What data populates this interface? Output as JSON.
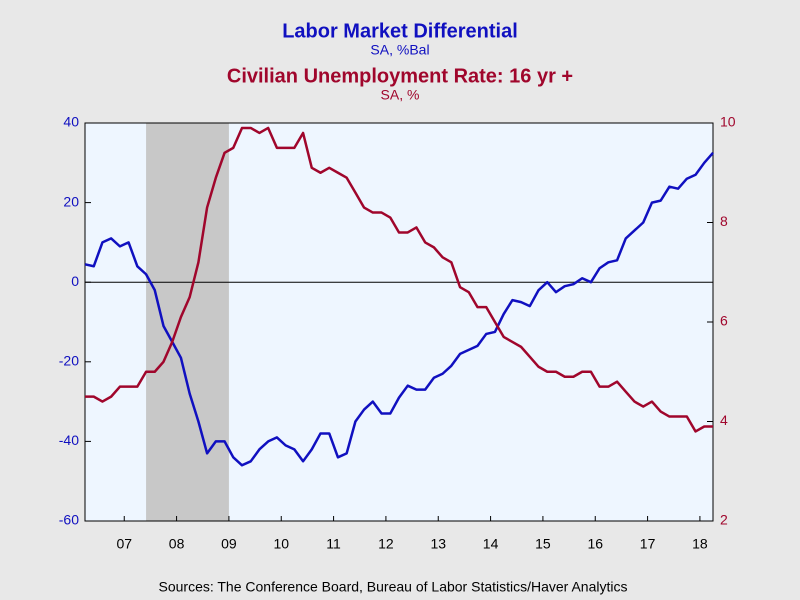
{
  "chart_data": {
    "type": "line",
    "series": [
      {
        "name": "Labor Market Differential",
        "units": "SA, %Bal",
        "color": "#1010c0",
        "axis": "y",
        "values": [
          4.5,
          4,
          10,
          11,
          9,
          10,
          4,
          2,
          -2,
          -11,
          -15,
          -19,
          -28,
          -35,
          -43,
          -40,
          -40,
          -44,
          -46,
          -45,
          -42,
          -40,
          -39,
          -41,
          -42,
          -45,
          -42,
          -38,
          -38,
          -44,
          -43,
          -35,
          -32,
          -30,
          -33,
          -33,
          -29,
          -26,
          -27,
          -27,
          -24,
          -23,
          -21,
          -18,
          -17,
          -16,
          -13,
          -12.5,
          -8,
          -4.5,
          -5,
          -6,
          -2,
          0,
          -2.5,
          -1,
          -0.5,
          1,
          0,
          3.5,
          5,
          5.5,
          11,
          13,
          15,
          20,
          20.5,
          24,
          23.5,
          26,
          27,
          30,
          32.5
        ]
      },
      {
        "name": "Civilian Unemployment Rate: 16 yr +",
        "units": "SA, %",
        "color": "#a0062c",
        "axis": "y2",
        "values": [
          4.5,
          4.5,
          4.4,
          4.5,
          4.7,
          4.7,
          4.7,
          5.0,
          5.0,
          5.2,
          5.6,
          6.1,
          6.5,
          7.2,
          8.3,
          8.9,
          9.4,
          9.5,
          9.9,
          9.9,
          9.8,
          9.9,
          9.5,
          9.5,
          9.5,
          9.8,
          9.1,
          9.0,
          9.1,
          9.0,
          8.9,
          8.6,
          8.3,
          8.2,
          8.2,
          8.1,
          7.8,
          7.8,
          7.9,
          7.6,
          7.5,
          7.3,
          7.2,
          6.7,
          6.6,
          6.3,
          6.3,
          6.0,
          5.7,
          5.6,
          5.5,
          5.3,
          5.1,
          5.0,
          5.0,
          4.9,
          4.9,
          5.0,
          5.0,
          4.7,
          4.7,
          4.8,
          4.6,
          4.4,
          4.3,
          4.4,
          4.2,
          4.1,
          4.1,
          4.1,
          3.8,
          3.9,
          3.9
        ]
      }
    ],
    "x": [
      2006.75,
      2006.917,
      2007.083,
      2007.25,
      2007.417,
      2007.583,
      2007.75,
      2007.917,
      2008.083,
      2008.25,
      2008.417,
      2008.583,
      2008.75,
      2008.917,
      2009.083,
      2009.25,
      2009.417,
      2009.583,
      2009.75,
      2009.917,
      2010.083,
      2010.25,
      2010.417,
      2010.583,
      2010.75,
      2010.917,
      2011.083,
      2011.25,
      2011.417,
      2011.583,
      2011.75,
      2011.917,
      2012.083,
      2012.25,
      2012.417,
      2012.583,
      2012.75,
      2012.917,
      2013.083,
      2013.25,
      2013.417,
      2013.583,
      2013.75,
      2013.917,
      2014.083,
      2014.25,
      2014.417,
      2014.583,
      2014.75,
      2014.917,
      2015.083,
      2015.25,
      2015.417,
      2015.583,
      2015.75,
      2015.917,
      2016.083,
      2016.25,
      2016.417,
      2016.583,
      2016.75,
      2016.917,
      2017.083,
      2017.25,
      2017.417,
      2017.583,
      2017.75,
      2017.917,
      2018.083,
      2018.25,
      2018.417,
      2018.583,
      2018.75
    ],
    "xlim": [
      2006.75,
      2018.75
    ],
    "xticks": [
      {
        "value": 2007.5,
        "label": "07"
      },
      {
        "value": 2008.5,
        "label": "08"
      },
      {
        "value": 2009.5,
        "label": "09"
      },
      {
        "value": 2010.5,
        "label": "10"
      },
      {
        "value": 2011.5,
        "label": "11"
      },
      {
        "value": 2012.5,
        "label": "12"
      },
      {
        "value": 2013.5,
        "label": "13"
      },
      {
        "value": 2014.5,
        "label": "14"
      },
      {
        "value": 2015.5,
        "label": "15"
      },
      {
        "value": 2016.5,
        "label": "16"
      },
      {
        "value": 2017.5,
        "label": "17"
      },
      {
        "value": 2018.5,
        "label": "18"
      }
    ],
    "ylim": [
      -60,
      40
    ],
    "yticks": [
      -60,
      -40,
      -20,
      0,
      20,
      40
    ],
    "y2lim": [
      2,
      10
    ],
    "y2ticks": [
      2,
      4,
      6,
      8,
      10
    ],
    "hline": 0,
    "shade": [
      2007.917,
      2009.5
    ],
    "source": "Sources:  The Conference Board, Bureau of Labor Statistics/Haver Analytics"
  }
}
